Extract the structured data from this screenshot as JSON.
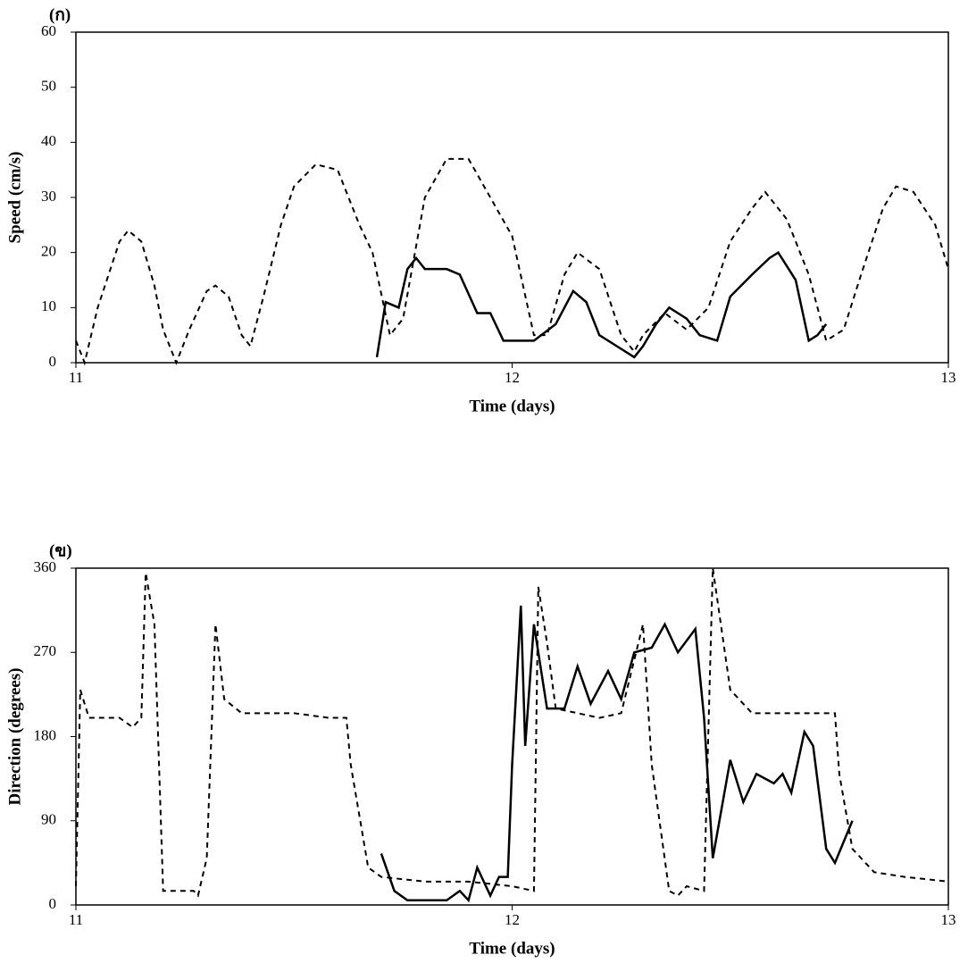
{
  "chart_data": [
    {
      "type": "line",
      "title": "(ก)",
      "x_label": "Time (days)",
      "y_label": "Speed (cm/s)",
      "xlim": [
        11,
        13
      ],
      "xticks": [
        11,
        12,
        13
      ],
      "ylim": [
        0,
        60
      ],
      "yticks": [
        0,
        10,
        20,
        30,
        40,
        50,
        60
      ],
      "series": [
        {
          "color": "#000000",
          "style": "dashed",
          "x": [
            11.0,
            11.02,
            11.05,
            11.1,
            11.12,
            11.15,
            11.18,
            11.2,
            11.23,
            11.26,
            11.3,
            11.32,
            11.35,
            11.38,
            11.4,
            11.43,
            11.47,
            11.5,
            11.55,
            11.6,
            11.65,
            11.68,
            11.72,
            11.75,
            11.8,
            11.85,
            11.9,
            11.95,
            12.0,
            12.05,
            12.08,
            12.12,
            12.15,
            12.2,
            12.25,
            12.28,
            12.3,
            12.35,
            12.4,
            12.45,
            12.5,
            12.55,
            12.58,
            12.63,
            12.68,
            12.72,
            12.76,
            12.8,
            12.85,
            12.88,
            12.92,
            12.97,
            13.0
          ],
          "values": [
            4,
            0,
            10,
            22,
            24,
            22,
            14,
            6,
            0,
            6,
            13,
            14,
            12,
            5,
            3,
            12,
            25,
            32,
            36,
            35,
            25,
            20,
            5,
            8,
            30,
            37,
            37,
            30,
            23,
            5,
            5,
            16,
            20,
            17,
            5,
            2,
            5,
            9,
            6,
            10,
            22,
            28,
            31,
            26,
            16,
            4,
            6,
            16,
            28,
            32,
            31,
            25,
            17
          ]
        },
        {
          "color": "#000000",
          "style": "solid",
          "x": [
            11.69,
            11.71,
            11.74,
            11.76,
            11.78,
            11.8,
            11.85,
            11.88,
            11.92,
            11.95,
            11.98,
            12.0,
            12.05,
            12.1,
            12.14,
            12.17,
            12.2,
            12.24,
            12.28,
            12.3,
            12.33,
            12.36,
            12.4,
            12.43,
            12.47,
            12.5,
            12.55,
            12.59,
            12.61,
            12.65,
            12.68,
            12.7,
            12.72
          ],
          "values": [
            1,
            11,
            10,
            17,
            19,
            17,
            17,
            16,
            9,
            9,
            4,
            4,
            4,
            7,
            13,
            11,
            5,
            3,
            1,
            3,
            7,
            10,
            8,
            5,
            4,
            12,
            16,
            19,
            20,
            15,
            4,
            5,
            7
          ]
        }
      ]
    },
    {
      "type": "line",
      "title": "(ข)",
      "x_label": "Time (days)",
      "y_label": "Direction (degrees)",
      "xlim": [
        11,
        13
      ],
      "xticks": [
        11,
        12,
        13
      ],
      "ylim": [
        0,
        360
      ],
      "yticks": [
        0,
        90,
        180,
        270,
        360
      ],
      "series": [
        {
          "color": "#000000",
          "style": "dashed",
          "x": [
            11.0,
            11.01,
            11.03,
            11.1,
            11.13,
            11.15,
            11.16,
            11.18,
            11.2,
            11.27,
            11.28,
            11.3,
            11.32,
            11.34,
            11.38,
            11.45,
            11.5,
            11.58,
            11.62,
            11.63,
            11.67,
            11.7,
            11.8,
            11.9,
            12.0,
            12.05,
            12.06,
            12.08,
            12.1,
            12.2,
            12.25,
            12.3,
            12.32,
            12.36,
            12.38,
            12.4,
            12.44,
            12.46,
            12.5,
            12.55,
            12.6,
            12.7,
            12.74,
            12.75,
            12.78,
            12.83,
            12.9,
            13.0
          ],
          "values": [
            20,
            230,
            200,
            200,
            190,
            200,
            355,
            300,
            15,
            15,
            10,
            50,
            300,
            220,
            205,
            205,
            205,
            200,
            200,
            150,
            40,
            30,
            25,
            25,
            20,
            15,
            340,
            280,
            210,
            200,
            205,
            300,
            150,
            15,
            10,
            20,
            15,
            360,
            230,
            205,
            205,
            205,
            205,
            140,
            60,
            35,
            30,
            25
          ]
        },
        {
          "color": "#000000",
          "style": "solid",
          "x": [
            11.7,
            11.73,
            11.76,
            11.8,
            11.85,
            11.88,
            11.9,
            11.92,
            11.95,
            11.97,
            11.99,
            12.0,
            12.02,
            12.03,
            12.05,
            12.08,
            12.12,
            12.15,
            12.18,
            12.22,
            12.25,
            12.28,
            12.32,
            12.35,
            12.38,
            12.42,
            12.44,
            12.46,
            12.5,
            12.53,
            12.56,
            12.6,
            12.62,
            12.64,
            12.67,
            12.69,
            12.72,
            12.74,
            12.78
          ],
          "values": [
            55,
            15,
            5,
            5,
            5,
            15,
            5,
            40,
            10,
            30,
            30,
            150,
            320,
            170,
            300,
            210,
            210,
            255,
            215,
            250,
            220,
            270,
            275,
            300,
            270,
            295,
            200,
            50,
            155,
            110,
            140,
            130,
            140,
            120,
            185,
            170,
            60,
            45,
            90
          ]
        }
      ]
    }
  ]
}
